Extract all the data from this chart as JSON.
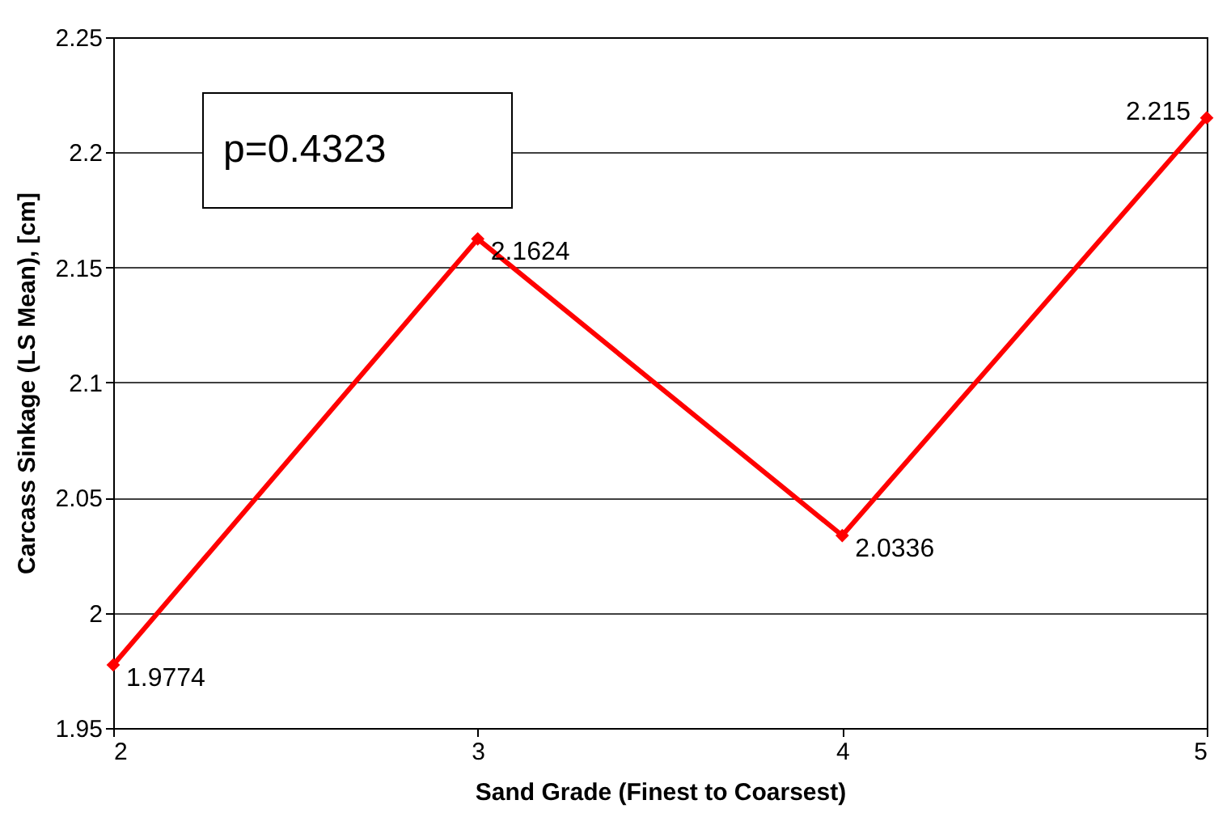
{
  "chart_data": {
    "type": "line",
    "xlabel": "Sand Grade (Finest to Coarsest)",
    "ylabel": "Carcass Sinkage (LS Mean), [cm]",
    "x": [
      2,
      3,
      4,
      5
    ],
    "series": [
      {
        "color": "#ff0000",
        "values": [
          1.9774,
          2.1624,
          2.0336,
          2.215
        ]
      }
    ],
    "xlim": [
      2,
      5
    ],
    "xticks": [
      2,
      3,
      4,
      5
    ],
    "ylim": [
      1.95,
      2.25
    ],
    "yticks": [
      1.95,
      2,
      2.05,
      2.1,
      2.15,
      2.2,
      2.25
    ],
    "grid": "y",
    "marker": "diamond",
    "line_style": "solid",
    "data_labels": true,
    "annotations": [
      "p=0.4323"
    ]
  }
}
